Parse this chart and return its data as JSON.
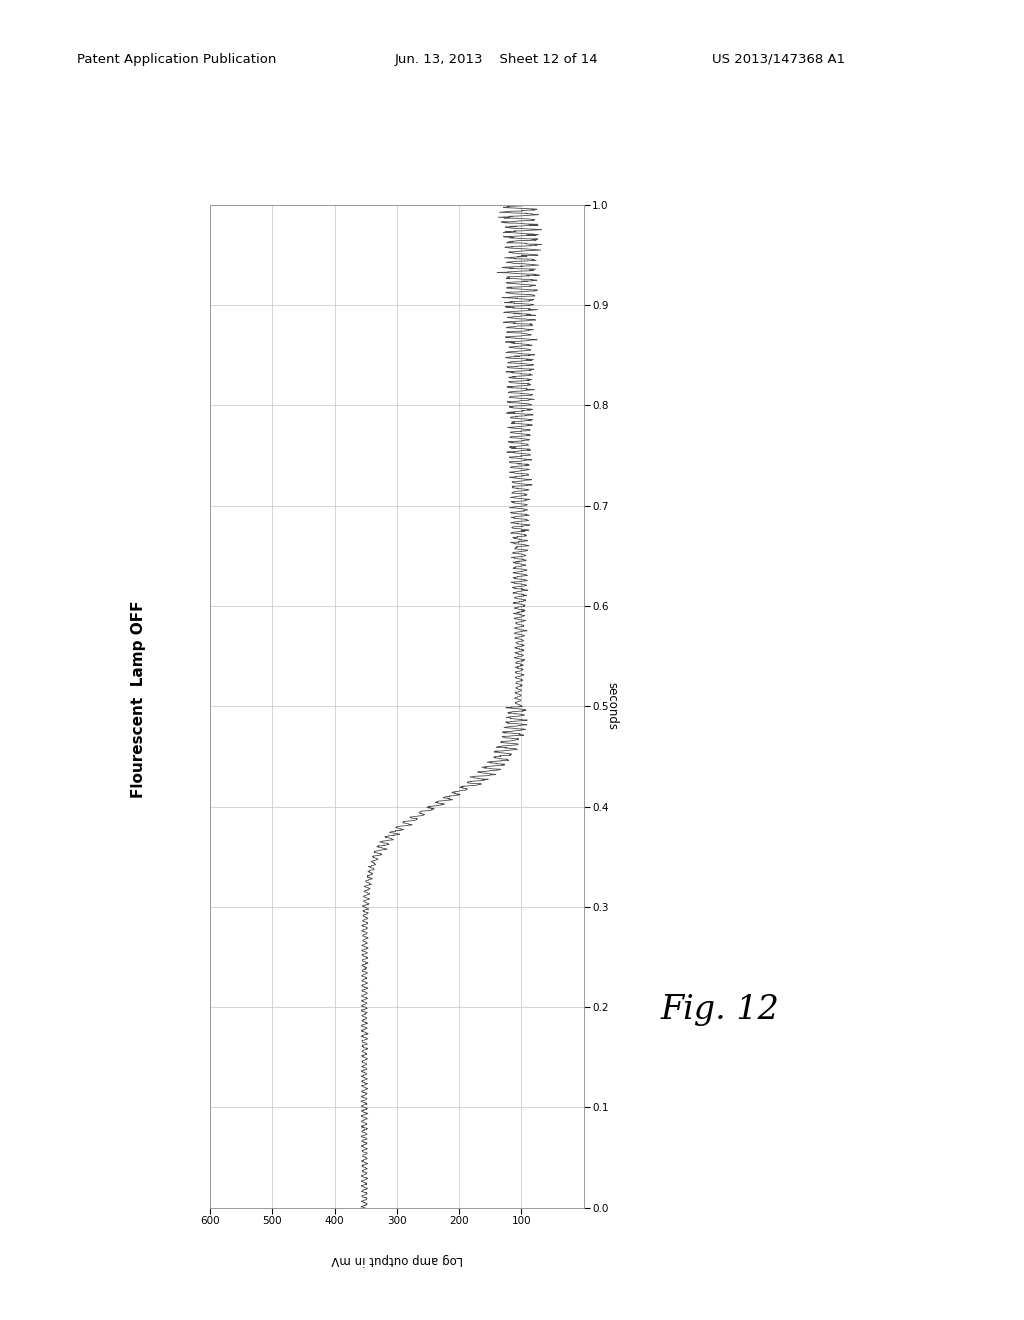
{
  "title_header": "Patent Application Publication",
  "title_date": "Jun. 13, 2013",
  "title_sheet": "Sheet 12 of 14",
  "title_patent": "US 2013/147368 A1",
  "fig_label": "Fig. 12",
  "chart_label": "Flourescent  Lamp OFF",
  "xlabel": "Log amp output in mV",
  "ylabel": "seconds",
  "xlim": [
    600,
    0
  ],
  "ylim": [
    0,
    1
  ],
  "yticks": [
    0,
    0.1,
    0.2,
    0.3,
    0.4,
    0.5,
    0.6,
    0.7,
    0.8,
    0.9,
    1
  ],
  "xticks": [
    600,
    500,
    400,
    300,
    200,
    100
  ],
  "grid_color": "#c8c8c8",
  "line_color": "#333333",
  "bg_color": "#ffffff"
}
